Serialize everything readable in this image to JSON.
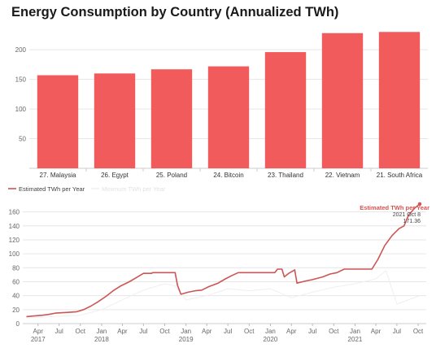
{
  "title": "Energy Consumption by Country (Annualized TWh)",
  "colors": {
    "bar": "#f15b5b",
    "line": "#cc5555",
    "secondary_line": "#efefef",
    "grid": "#e6e6e6",
    "annotation": "#d9534f"
  },
  "chart_data": [
    {
      "type": "bar",
      "categories": [
        "27. Malaysia",
        "26. Egypt",
        "25. Poland",
        "24. Bitcoin",
        "23. Thailand",
        "22. Vietnam",
        "21. South Africa"
      ],
      "values": [
        157,
        160,
        167,
        172,
        196,
        228,
        230
      ],
      "ylim": [
        0,
        240
      ],
      "yticks": [
        50,
        100,
        150,
        200
      ],
      "grid": true,
      "legend": "none"
    },
    {
      "type": "line",
      "legend": "top-left",
      "ylim": [
        0,
        170
      ],
      "yticks": [
        0,
        20,
        40,
        60,
        80,
        100,
        120,
        140,
        160
      ],
      "xlim": [
        "2017-01-25",
        "2021-11-05"
      ],
      "grid": true,
      "x_month_labels": [
        {
          "date": "2017-04-01",
          "label": "Apr",
          "year": "2017"
        },
        {
          "date": "2017-07-01",
          "label": "Jul"
        },
        {
          "date": "2017-10-01",
          "label": "Oct"
        },
        {
          "date": "2018-01-01",
          "label": "Jan",
          "year": "2018"
        },
        {
          "date": "2018-04-01",
          "label": "Apr"
        },
        {
          "date": "2018-07-01",
          "label": "Jul"
        },
        {
          "date": "2018-10-01",
          "label": "Oct"
        },
        {
          "date": "2019-01-01",
          "label": "Jan",
          "year": "2019"
        },
        {
          "date": "2019-04-01",
          "label": "Apr"
        },
        {
          "date": "2019-07-01",
          "label": "Jul"
        },
        {
          "date": "2019-10-01",
          "label": "Oct"
        },
        {
          "date": "2020-01-01",
          "label": "Jan",
          "year": "2020"
        },
        {
          "date": "2020-04-01",
          "label": "Apr"
        },
        {
          "date": "2020-07-01",
          "label": "Jul"
        },
        {
          "date": "2020-10-01",
          "label": "Oct"
        },
        {
          "date": "2021-01-01",
          "label": "Jan",
          "year": "2021"
        },
        {
          "date": "2021-04-01",
          "label": "Apr"
        },
        {
          "date": "2021-07-01",
          "label": "Jul"
        },
        {
          "date": "2021-10-01",
          "label": "Oct"
        }
      ],
      "series": [
        {
          "name": "Estimated TWh per Year",
          "points": [
            [
              "2017-02-10",
              10
            ],
            [
              "2017-03-15",
              11
            ],
            [
              "2017-04-20",
              12
            ],
            [
              "2017-05-15",
              13
            ],
            [
              "2017-06-15",
              15
            ],
            [
              "2017-08-01",
              16
            ],
            [
              "2017-09-15",
              17
            ],
            [
              "2017-10-15",
              20
            ],
            [
              "2017-11-15",
              25
            ],
            [
              "2017-12-15",
              31
            ],
            [
              "2018-01-20",
              39
            ],
            [
              "2018-02-20",
              47
            ],
            [
              "2018-03-25",
              54
            ],
            [
              "2018-05-01",
              60
            ],
            [
              "2018-06-01",
              66
            ],
            [
              "2018-07-01",
              72
            ],
            [
              "2018-08-05",
              72
            ],
            [
              "2018-08-10",
              73
            ],
            [
              "2018-11-15",
              73
            ],
            [
              "2018-11-25",
              55
            ],
            [
              "2018-12-10",
              42
            ],
            [
              "2019-01-10",
              45
            ],
            [
              "2019-02-10",
              47
            ],
            [
              "2019-03-10",
              48
            ],
            [
              "2019-04-10",
              53
            ],
            [
              "2019-05-20",
              58
            ],
            [
              "2019-06-20",
              64
            ],
            [
              "2019-07-20",
              69
            ],
            [
              "2019-08-15",
              73
            ],
            [
              "2019-12-05",
              73
            ],
            [
              "2020-01-20",
              73
            ],
            [
              "2020-02-01",
              78
            ],
            [
              "2020-02-20",
              78
            ],
            [
              "2020-03-01",
              67
            ],
            [
              "2020-03-20",
              72
            ],
            [
              "2020-04-15",
              77
            ],
            [
              "2020-04-25",
              58
            ],
            [
              "2020-06-01",
              61
            ],
            [
              "2020-07-01",
              63
            ],
            [
              "2020-08-15",
              67
            ],
            [
              "2020-09-15",
              71
            ],
            [
              "2020-10-15",
              73
            ],
            [
              "2020-11-15",
              78
            ],
            [
              "2021-03-15",
              78
            ],
            [
              "2021-04-10",
              92
            ],
            [
              "2021-05-10",
              112
            ],
            [
              "2021-06-10",
              126
            ],
            [
              "2021-07-10",
              136
            ],
            [
              "2021-08-01",
              140
            ],
            [
              "2021-08-20",
              155
            ],
            [
              "2021-09-15",
              165
            ],
            [
              "2021-10-08",
              171.36
            ]
          ]
        },
        {
          "name": "Minimum TWh per Year",
          "points": [
            [
              "2017-02-10",
              8
            ],
            [
              "2017-06-01",
              10
            ],
            [
              "2017-10-01",
              12
            ],
            [
              "2018-01-01",
              20
            ],
            [
              "2018-04-01",
              34
            ],
            [
              "2018-07-01",
              48
            ],
            [
              "2018-10-01",
              57
            ],
            [
              "2018-11-15",
              54
            ],
            [
              "2019-01-01",
              34
            ],
            [
              "2019-04-01",
              40
            ],
            [
              "2019-07-01",
              50
            ],
            [
              "2019-10-01",
              47
            ],
            [
              "2020-01-01",
              50
            ],
            [
              "2020-04-01",
              37
            ],
            [
              "2020-07-01",
              45
            ],
            [
              "2020-10-01",
              52
            ],
            [
              "2021-01-01",
              57
            ],
            [
              "2021-04-01",
              64
            ],
            [
              "2021-05-15",
              76
            ],
            [
              "2021-07-01",
              28
            ],
            [
              "2021-10-08",
              40
            ]
          ]
        }
      ],
      "annotation": {
        "title": "Estimated TWh per Year",
        "date_label": "2021 Oct 8",
        "value_label": "171.36",
        "date": "2021-10-08",
        "value": 171.36
      }
    }
  ]
}
